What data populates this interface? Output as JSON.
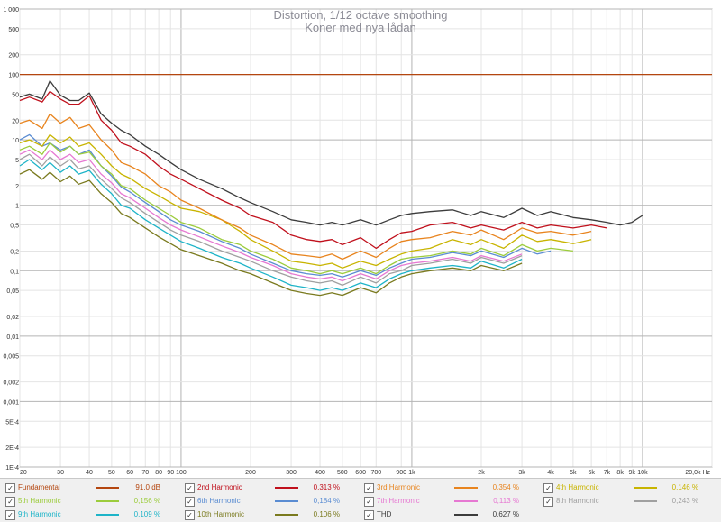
{
  "chart_data": {
    "type": "line",
    "title": "Distortion, 1/12 octave smoothing",
    "subtitle": "Koner med nya lådan",
    "xscale": "log",
    "yscale": "log",
    "xlim": [
      20,
      20000
    ],
    "ylim": [
      0.0001,
      1000
    ],
    "x_unit": "Hz",
    "grid": true,
    "legend_placement": "bottom",
    "x_ticks": [
      {
        "v": 20,
        "l": "20"
      },
      {
        "v": 30,
        "l": "30"
      },
      {
        "v": 40,
        "l": "40"
      },
      {
        "v": 50,
        "l": "50"
      },
      {
        "v": 60,
        "l": "60"
      },
      {
        "v": 70,
        "l": "70"
      },
      {
        "v": 80,
        "l": "80"
      },
      {
        "v": 90,
        "l": "90"
      },
      {
        "v": 100,
        "l": "100"
      },
      {
        "v": 200,
        "l": "200"
      },
      {
        "v": 300,
        "l": "300"
      },
      {
        "v": 400,
        "l": "400"
      },
      {
        "v": 500,
        "l": "500"
      },
      {
        "v": 600,
        "l": "600"
      },
      {
        "v": 700,
        "l": "700"
      },
      {
        "v": 900,
        "l": "900"
      },
      {
        "v": 1000,
        "l": "1k"
      },
      {
        "v": 2000,
        "l": "2k"
      },
      {
        "v": 3000,
        "l": "3k"
      },
      {
        "v": 4000,
        "l": "4k"
      },
      {
        "v": 5000,
        "l": "5k"
      },
      {
        "v": 6000,
        "l": "6k"
      },
      {
        "v": 7000,
        "l": "7k"
      },
      {
        "v": 8000,
        "l": "8k"
      },
      {
        "v": 9000,
        "l": "9k"
      },
      {
        "v": 10000,
        "l": "10k"
      },
      {
        "v": 20000,
        "l": "20,0k Hz"
      }
    ],
    "y_ticks": [
      {
        "v": 1000,
        "l": "1 000"
      },
      {
        "v": 500,
        "l": "500"
      },
      {
        "v": 200,
        "l": "200"
      },
      {
        "v": 100,
        "l": "100"
      },
      {
        "v": 50,
        "l": "50"
      },
      {
        "v": 20,
        "l": "20"
      },
      {
        "v": 10,
        "l": "10"
      },
      {
        "v": 5,
        "l": "5"
      },
      {
        "v": 2,
        "l": "2"
      },
      {
        "v": 1,
        "l": "1"
      },
      {
        "v": 0.5,
        "l": "0,5"
      },
      {
        "v": 0.2,
        "l": "0,2"
      },
      {
        "v": 0.1,
        "l": "0,1"
      },
      {
        "v": 0.05,
        "l": "0,05"
      },
      {
        "v": 0.02,
        "l": "0,02"
      },
      {
        "v": 0.01,
        "l": "0,01"
      },
      {
        "v": 0.005,
        "l": "0,005"
      },
      {
        "v": 0.002,
        "l": "0,002"
      },
      {
        "v": 0.001,
        "l": "0,001"
      },
      {
        "v": 0.0005,
        "l": "5E-4"
      },
      {
        "v": 0.0002,
        "l": "2E-4"
      },
      {
        "v": 0.0001,
        "l": "1E-4"
      }
    ],
    "series": [
      {
        "name": "Fundamental",
        "value_label": "91,0 dB",
        "color": "#b4460f",
        "x": [
          20,
          100,
          1000,
          10000,
          20000
        ],
        "y": [
          100,
          100,
          100,
          100,
          100
        ]
      },
      {
        "name": "2nd Harmonic",
        "value_label": "0,313 %",
        "color": "#c0101c",
        "x": [
          20,
          22,
          25,
          27,
          30,
          33,
          36,
          40,
          45,
          50,
          55,
          60,
          70,
          80,
          90,
          100,
          120,
          150,
          180,
          200,
          250,
          300,
          350,
          400,
          450,
          500,
          600,
          700,
          800,
          900,
          1000,
          1200,
          1500,
          1800,
          2000,
          2500,
          3000,
          3500,
          4000,
          5000,
          6000,
          7000
        ],
        "y": [
          40,
          45,
          38,
          55,
          42,
          35,
          35,
          47,
          20,
          14,
          9,
          8,
          6,
          4,
          3,
          2.5,
          1.8,
          1.2,
          0.9,
          0.7,
          0.55,
          0.35,
          0.3,
          0.28,
          0.3,
          0.25,
          0.32,
          0.22,
          0.3,
          0.38,
          0.4,
          0.5,
          0.55,
          0.45,
          0.5,
          0.42,
          0.55,
          0.45,
          0.5,
          0.45,
          0.5,
          0.45
        ]
      },
      {
        "name": "3rd Harmonic",
        "value_label": "0,354 %",
        "color": "#e8841e",
        "x": [
          20,
          22,
          25,
          27,
          30,
          33,
          36,
          40,
          45,
          50,
          55,
          60,
          70,
          80,
          90,
          100,
          120,
          150,
          180,
          200,
          250,
          300,
          350,
          400,
          450,
          500,
          600,
          700,
          800,
          900,
          1000,
          1200,
          1500,
          1800,
          2000,
          2500,
          3000,
          3500,
          4000,
          5000,
          6000
        ],
        "y": [
          18,
          20,
          15,
          25,
          18,
          22,
          15,
          17,
          10,
          7,
          4.5,
          4,
          3,
          2,
          1.6,
          1.2,
          0.9,
          0.6,
          0.45,
          0.35,
          0.25,
          0.18,
          0.17,
          0.16,
          0.18,
          0.15,
          0.2,
          0.16,
          0.22,
          0.28,
          0.3,
          0.32,
          0.4,
          0.35,
          0.42,
          0.3,
          0.45,
          0.38,
          0.4,
          0.35,
          0.4
        ]
      },
      {
        "name": "4th Harmonic",
        "value_label": "0,146 %",
        "color": "#c8b400",
        "x": [
          20,
          22,
          25,
          27,
          30,
          33,
          36,
          40,
          45,
          50,
          55,
          60,
          70,
          80,
          90,
          100,
          120,
          150,
          180,
          200,
          250,
          300,
          350,
          400,
          450,
          500,
          600,
          700,
          800,
          900,
          1000,
          1200,
          1500,
          1800,
          2000,
          2500,
          3000,
          3500,
          4000,
          5000,
          6000
        ],
        "y": [
          9,
          10,
          8,
          12,
          9,
          11,
          8,
          9,
          6,
          4,
          3,
          2.6,
          1.8,
          1.4,
          1.1,
          0.9,
          0.8,
          0.6,
          0.4,
          0.3,
          0.2,
          0.14,
          0.13,
          0.12,
          0.13,
          0.11,
          0.14,
          0.12,
          0.15,
          0.18,
          0.2,
          0.22,
          0.3,
          0.25,
          0.3,
          0.22,
          0.35,
          0.28,
          0.3,
          0.26,
          0.3
        ]
      },
      {
        "name": "5th Harmonic",
        "value_label": "0,156 %",
        "color": "#9ccc3c",
        "x": [
          20,
          22,
          25,
          27,
          30,
          33,
          36,
          40,
          45,
          50,
          55,
          60,
          70,
          80,
          90,
          100,
          120,
          150,
          180,
          200,
          250,
          300,
          350,
          400,
          450,
          500,
          600,
          700,
          800,
          900,
          1000,
          1200,
          1500,
          1800,
          2000,
          2500,
          3000,
          3500,
          4000,
          5000
        ],
        "y": [
          7,
          8,
          6,
          9,
          6.5,
          8,
          6,
          6.5,
          4,
          3,
          2,
          1.8,
          1.2,
          0.9,
          0.7,
          0.55,
          0.45,
          0.3,
          0.25,
          0.2,
          0.15,
          0.11,
          0.1,
          0.09,
          0.1,
          0.09,
          0.11,
          0.09,
          0.12,
          0.15,
          0.16,
          0.17,
          0.2,
          0.18,
          0.22,
          0.17,
          0.25,
          0.2,
          0.22,
          0.2
        ]
      },
      {
        "name": "6th Harmonic",
        "value_label": "0,184 %",
        "color": "#5a8cd2",
        "x": [
          20,
          22,
          25,
          27,
          30,
          33,
          36,
          40,
          45,
          50,
          55,
          60,
          70,
          80,
          90,
          100,
          120,
          150,
          180,
          200,
          250,
          300,
          350,
          400,
          450,
          500,
          600,
          700,
          800,
          900,
          1000,
          1200,
          1500,
          1800,
          2000,
          2500,
          3000,
          3500,
          4000
        ],
        "y": [
          10,
          12,
          8,
          9,
          7,
          8,
          6,
          7,
          4,
          2.8,
          1.9,
          1.6,
          1.1,
          0.8,
          0.6,
          0.5,
          0.4,
          0.28,
          0.22,
          0.18,
          0.13,
          0.1,
          0.09,
          0.085,
          0.09,
          0.08,
          0.1,
          0.085,
          0.11,
          0.13,
          0.15,
          0.16,
          0.19,
          0.17,
          0.2,
          0.16,
          0.22,
          0.18,
          0.2
        ]
      },
      {
        "name": "7th Harmonic",
        "value_label": "0,113 %",
        "color": "#e678d2",
        "x": [
          20,
          22,
          25,
          27,
          30,
          33,
          36,
          40,
          45,
          50,
          55,
          60,
          70,
          80,
          90,
          100,
          120,
          150,
          180,
          200,
          250,
          300,
          350,
          400,
          450,
          500,
          600,
          700,
          800,
          900,
          1000,
          1200,
          1500,
          1800,
          2000,
          2500,
          3000
        ],
        "y": [
          6,
          7,
          5,
          7,
          5,
          6,
          4.5,
          5,
          3,
          2.2,
          1.5,
          1.3,
          0.9,
          0.65,
          0.5,
          0.42,
          0.33,
          0.24,
          0.19,
          0.16,
          0.12,
          0.09,
          0.08,
          0.075,
          0.08,
          0.07,
          0.09,
          0.075,
          0.1,
          0.12,
          0.13,
          0.14,
          0.16,
          0.14,
          0.17,
          0.14,
          0.18
        ]
      },
      {
        "name": "8th Harmonic",
        "value_label": "0,243 %",
        "color": "#a0a0a0",
        "x": [
          20,
          22,
          25,
          27,
          30,
          33,
          36,
          40,
          45,
          50,
          55,
          60,
          70,
          80,
          90,
          100,
          120,
          150,
          180,
          200,
          250,
          300,
          350,
          400,
          450,
          500,
          600,
          700,
          800,
          900,
          1000,
          1200,
          1500,
          1800,
          2000,
          2500,
          3000
        ],
        "y": [
          5,
          6,
          4,
          5.5,
          4,
          5,
          3.6,
          4,
          2.5,
          1.8,
          1.3,
          1.1,
          0.75,
          0.55,
          0.42,
          0.35,
          0.28,
          0.2,
          0.16,
          0.14,
          0.1,
          0.08,
          0.07,
          0.065,
          0.07,
          0.06,
          0.08,
          0.065,
          0.09,
          0.1,
          0.12,
          0.13,
          0.15,
          0.13,
          0.16,
          0.13,
          0.17
        ]
      },
      {
        "name": "9th Harmonic",
        "value_label": "0,109 %",
        "color": "#1eb4c8",
        "x": [
          20,
          22,
          25,
          27,
          30,
          33,
          36,
          40,
          45,
          50,
          55,
          60,
          70,
          80,
          90,
          100,
          120,
          150,
          180,
          200,
          250,
          300,
          350,
          400,
          450,
          500,
          600,
          700,
          800,
          900,
          1000,
          1200,
          1500,
          1800,
          2000,
          2500,
          3000
        ],
        "y": [
          4,
          5,
          3.5,
          4.5,
          3.2,
          4,
          3,
          3.4,
          2.1,
          1.5,
          1,
          0.9,
          0.6,
          0.45,
          0.35,
          0.28,
          0.22,
          0.16,
          0.13,
          0.11,
          0.08,
          0.06,
          0.055,
          0.05,
          0.055,
          0.05,
          0.065,
          0.055,
          0.075,
          0.09,
          0.1,
          0.11,
          0.12,
          0.11,
          0.14,
          0.11,
          0.15
        ]
      },
      {
        "name": "10th Harmonic",
        "value_label": "0,106 %",
        "color": "#7a7a1e",
        "x": [
          20,
          22,
          25,
          27,
          30,
          33,
          36,
          40,
          45,
          50,
          55,
          60,
          70,
          80,
          90,
          100,
          120,
          150,
          180,
          200,
          250,
          300,
          350,
          400,
          450,
          500,
          600,
          700,
          800,
          900,
          1000,
          1200,
          1500,
          1800,
          2000,
          2500,
          3000
        ],
        "y": [
          3,
          3.5,
          2.5,
          3.2,
          2.3,
          2.8,
          2.1,
          2.4,
          1.5,
          1.1,
          0.75,
          0.65,
          0.45,
          0.33,
          0.26,
          0.21,
          0.17,
          0.13,
          0.1,
          0.09,
          0.065,
          0.05,
          0.045,
          0.042,
          0.046,
          0.042,
          0.055,
          0.046,
          0.065,
          0.08,
          0.09,
          0.1,
          0.11,
          0.1,
          0.12,
          0.1,
          0.13
        ]
      },
      {
        "name": "THD",
        "value_label": "0,627 %",
        "color": "#3c3c3c",
        "x": [
          20,
          22,
          25,
          27,
          30,
          33,
          36,
          40,
          45,
          50,
          55,
          60,
          70,
          80,
          90,
          100,
          120,
          150,
          180,
          200,
          250,
          300,
          350,
          400,
          450,
          500,
          600,
          700,
          800,
          900,
          1000,
          1200,
          1500,
          1800,
          2000,
          2500,
          3000,
          3500,
          4000,
          5000,
          6000,
          7000,
          8000,
          9000,
          10000
        ],
        "y": [
          45,
          50,
          42,
          80,
          48,
          40,
          40,
          52,
          25,
          18,
          14,
          12,
          8,
          6,
          4.5,
          3.5,
          2.5,
          1.8,
          1.3,
          1.1,
          0.8,
          0.6,
          0.55,
          0.5,
          0.55,
          0.5,
          0.6,
          0.5,
          0.6,
          0.7,
          0.75,
          0.8,
          0.85,
          0.7,
          0.8,
          0.65,
          0.9,
          0.7,
          0.8,
          0.65,
          0.6,
          0.55,
          0.5,
          0.55,
          0.7
        ]
      }
    ]
  }
}
